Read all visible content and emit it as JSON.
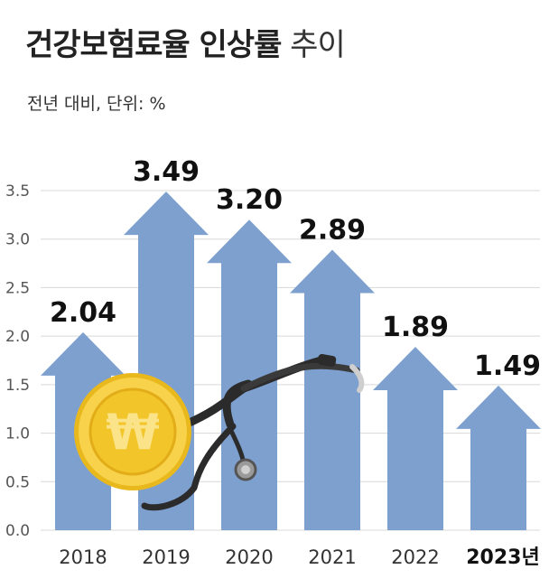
{
  "header": {
    "title_bold": "건강보험료율 인상률",
    "title_light": "추이",
    "subtitle": "전년 대비, 단위: %"
  },
  "chart_data": {
    "type": "bar",
    "categories": [
      "2018",
      "2019",
      "2020",
      "2021",
      "2022",
      "2023년"
    ],
    "values": [
      2.04,
      3.49,
      3.2,
      2.89,
      1.89,
      1.49
    ],
    "value_labels": [
      "2.04",
      "3.49",
      "3.20",
      "2.89",
      "1.89",
      "1.49"
    ],
    "yticks": [
      "0.0",
      "0.5",
      "1.0",
      "1.5",
      "2.0",
      "2.5",
      "3.0",
      "3.5"
    ],
    "ylim": [
      0,
      3.5
    ],
    "grid": true,
    "bar_style": "upward arrows",
    "highlight_category": "2023년",
    "colors": {
      "bar": "#7ea0cf",
      "grid": "#d8d8d8",
      "text": "#111111",
      "coin": "#f2c62a"
    },
    "illustration": [
      "won-coin-icon",
      "stethoscope-icon"
    ],
    "title": "",
    "xlabel": "",
    "ylabel": ""
  }
}
